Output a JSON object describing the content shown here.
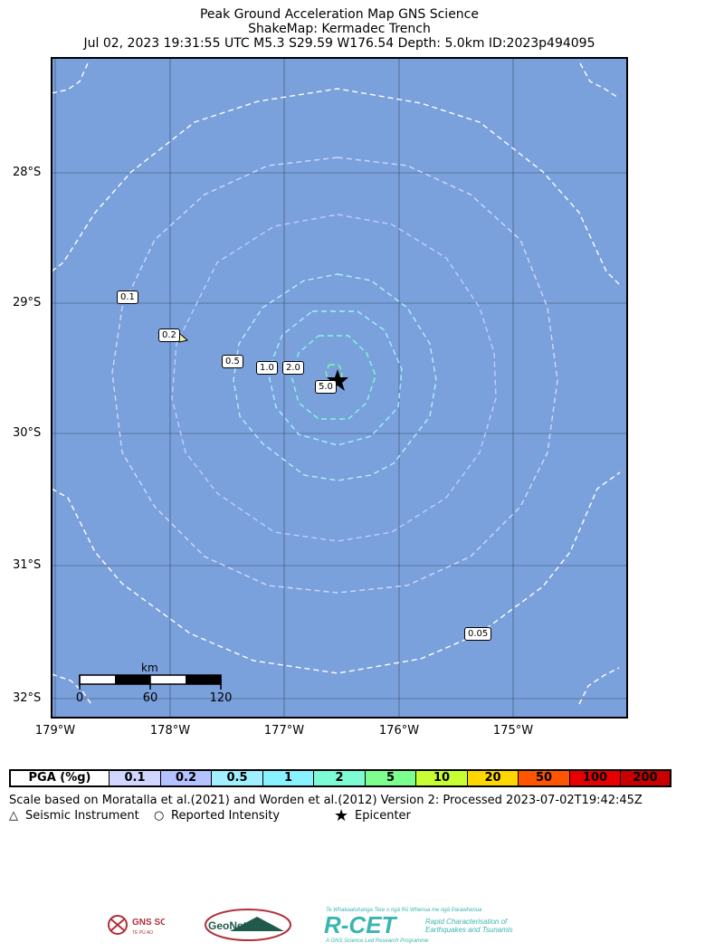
{
  "title": {
    "line1": "Peak Ground Acceleration Map GNS Science",
    "line2": "ShakeMap: Kermadec Trench",
    "line3": "Jul 02, 2023 19:31:55 UTC M5.3 S29.59 W176.54 Depth: 5.0km ID:2023p494095"
  },
  "map": {
    "ocean_color": "#7aa1db",
    "lat_labels": [
      "28°S",
      "29°S",
      "30°S",
      "31°S",
      "32°S"
    ],
    "lon_labels": [
      "179°W",
      "178°W",
      "177°W",
      "176°W",
      "175°W"
    ],
    "contour_labels": [
      "0.05",
      "0.1",
      "0.2",
      "0.5",
      "1.0",
      "2.0",
      "5.0"
    ],
    "epicenter": {
      "lat": -29.59,
      "lon": -176.54
    },
    "scale_bar": {
      "unit": "km",
      "ticks": [
        "0",
        "60",
        "120"
      ]
    }
  },
  "legend": {
    "header": "PGA (%g)",
    "bins": [
      {
        "label": "0.1",
        "color": "#d0d6ff"
      },
      {
        "label": "0.2",
        "color": "#b4c2ff"
      },
      {
        "label": "0.5",
        "color": "#a0f0ff"
      },
      {
        "label": "1",
        "color": "#88f2ff"
      },
      {
        "label": "2",
        "color": "#7dfbd5"
      },
      {
        "label": "5",
        "color": "#7dff90"
      },
      {
        "label": "10",
        "color": "#c8ff32"
      },
      {
        "label": "20",
        "color": "#ffd700"
      },
      {
        "label": "50",
        "color": "#ff5500"
      },
      {
        "label": "100",
        "color": "#e80000"
      },
      {
        "label": "200",
        "color": "#c80000"
      }
    ]
  },
  "notes": {
    "scale_text": "Scale based on Moratalla et al.(2021) and Worden et al.(2012)    Version 2: Processed 2023-07-02T19:42:45Z",
    "seismic_instrument": "Seismic Instrument",
    "reported_intensity": "Reported Intensity",
    "epicenter": "Epicenter"
  },
  "logos": {
    "gns": "GNS SCIENCE",
    "gns_sub": "TE PŪ AO",
    "geonet": "GeoNet",
    "rcet": "R-CET",
    "rcet_maori": "Te Whakaatuhanga Tere o ngā Rū Whenua me ngā Parawhenua",
    "rcet_line1": "Rapid Characterisation of",
    "rcet_line2": "Earthquakes and Tsunamis",
    "rcet_footer": "A GNS Science Led Research Programme"
  }
}
